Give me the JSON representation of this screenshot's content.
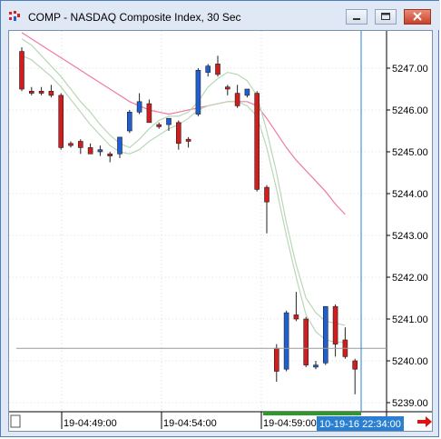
{
  "window": {
    "title": "COMP - NASDAQ Composite Index, 30 Sec",
    "minimize_icon": "minimize-icon",
    "maximize_icon": "maximize-icon",
    "close_icon": "close-icon"
  },
  "chart_data": {
    "type": "candlestick",
    "y_ticks": [
      "5247.00",
      "5246.00",
      "5245.00",
      "5244.00",
      "5243.00",
      "5242.00",
      "5241.00",
      "5240.00",
      "5239.00"
    ],
    "x_ticks": [
      "19-04:49:00",
      "19-04:54:00",
      "19-04:59:00"
    ],
    "crosshair_time_label": "10-19-16 22:34:00",
    "colors": {
      "up": "#1f5fd1",
      "down": "#d11d1d",
      "ma_fast": "#b9d7b6",
      "ma_slow": "#f07aa0",
      "cursor": "#2a7fd0",
      "price_line": "#9a9a9a"
    },
    "candles": [
      {
        "o": 5247.4,
        "h": 5247.5,
        "l": 5246.45,
        "c": 5246.5
      },
      {
        "o": 5246.45,
        "h": 5246.55,
        "l": 5246.35,
        "c": 5246.4
      },
      {
        "o": 5246.45,
        "h": 5246.55,
        "l": 5246.35,
        "c": 5246.4
      },
      {
        "o": 5246.45,
        "h": 5246.6,
        "l": 5246.3,
        "c": 5246.35
      },
      {
        "o": 5246.35,
        "h": 5246.4,
        "l": 5245.05,
        "c": 5245.1
      },
      {
        "o": 5245.2,
        "h": 5245.25,
        "l": 5245.1,
        "c": 5245.15
      },
      {
        "o": 5245.25,
        "h": 5245.3,
        "l": 5244.95,
        "c": 5245.1
      },
      {
        "o": 5245.1,
        "h": 5245.2,
        "l": 5244.95,
        "c": 5244.95
      },
      {
        "o": 5245.0,
        "h": 5245.15,
        "l": 5244.9,
        "c": 5245.05
      },
      {
        "o": 5244.95,
        "h": 5245.0,
        "l": 5244.75,
        "c": 5244.9
      },
      {
        "o": 5244.95,
        "h": 5245.35,
        "l": 5244.85,
        "c": 5245.35
      },
      {
        "o": 5245.5,
        "h": 5246.0,
        "l": 5245.45,
        "c": 5245.95
      },
      {
        "o": 5245.95,
        "h": 5246.4,
        "l": 5245.9,
        "c": 5246.2
      },
      {
        "o": 5246.15,
        "h": 5246.25,
        "l": 5245.7,
        "c": 5245.7
      },
      {
        "o": 5245.65,
        "h": 5245.7,
        "l": 5245.55,
        "c": 5245.6
      },
      {
        "o": 5245.65,
        "h": 5245.8,
        "l": 5245.5,
        "c": 5245.8
      },
      {
        "o": 5245.7,
        "h": 5245.75,
        "l": 5245.05,
        "c": 5245.2
      },
      {
        "o": 5245.3,
        "h": 5245.35,
        "l": 5245.1,
        "c": 5245.25
      },
      {
        "o": 5245.9,
        "h": 5247.0,
        "l": 5245.85,
        "c": 5246.95
      },
      {
        "o": 5246.9,
        "h": 5247.1,
        "l": 5246.8,
        "c": 5247.05
      },
      {
        "o": 5247.1,
        "h": 5247.3,
        "l": 5246.8,
        "c": 5246.85
      },
      {
        "o": 5246.55,
        "h": 5246.6,
        "l": 5246.35,
        "c": 5246.5
      },
      {
        "o": 5246.4,
        "h": 5246.6,
        "l": 5246.05,
        "c": 5246.1
      },
      {
        "o": 5246.35,
        "h": 5246.5,
        "l": 5246.3,
        "c": 5246.5
      },
      {
        "o": 5246.4,
        "h": 5246.45,
        "l": 5244.05,
        "c": 5244.1
      },
      {
        "o": 5244.15,
        "h": 5244.2,
        "l": 5243.05,
        "c": 5243.8
      },
      {
        "o": 5240.3,
        "h": 5240.4,
        "l": 5239.5,
        "c": 5239.75
      },
      {
        "o": 5239.8,
        "h": 5241.2,
        "l": 5239.75,
        "c": 5241.15
      },
      {
        "o": 5241.1,
        "h": 5241.65,
        "l": 5240.95,
        "c": 5241.0
      },
      {
        "o": 5241.0,
        "h": 5241.05,
        "l": 5239.85,
        "c": 5239.9
      },
      {
        "o": 5239.85,
        "h": 5240.0,
        "l": 5239.8,
        "c": 5239.9
      },
      {
        "o": 5239.95,
        "h": 5241.3,
        "l": 5239.9,
        "c": 5241.3
      },
      {
        "o": 5241.3,
        "h": 5241.35,
        "l": 5240.1,
        "c": 5240.4
      },
      {
        "o": 5240.5,
        "h": 5240.8,
        "l": 5240.05,
        "c": 5240.1
      },
      {
        "o": 5240.0,
        "h": 5240.05,
        "l": 5239.2,
        "c": 5239.8
      }
    ],
    "ma_fast": [
      5247.7,
      5247.55,
      5247.3,
      5247.05,
      5246.8,
      5246.5,
      5246.2,
      5245.95,
      5245.65,
      5245.4,
      5245.2,
      5245.1,
      5245.3,
      5245.55,
      5245.75,
      5245.85,
      5245.85,
      5245.95,
      5246.2,
      5246.55,
      5246.75,
      5246.9,
      5246.85,
      5246.7,
      5246.35,
      5245.5,
      5244.5,
      5243.3,
      5242.3,
      5241.5,
      5241.15,
      5240.95,
      5240.9,
      5240.85
    ],
    "ma_fast2": [
      5247.3,
      5247.2,
      5247.0,
      5246.8,
      5246.55,
      5246.25,
      5245.95,
      5245.65,
      5245.4,
      5245.15,
      5245.0,
      5244.95,
      5245.05,
      5245.25,
      5245.4,
      5245.55,
      5245.65,
      5245.8,
      5246.0,
      5246.1,
      5246.15,
      5246.2,
      5246.2,
      5246.1,
      5245.85,
      5245.1,
      5244.1,
      5243.0,
      5242.0,
      5241.1,
      5240.7,
      5240.5,
      5240.45,
      5240.45
    ],
    "ma_slow": [
      5247.85,
      5247.7,
      5247.55,
      5247.4,
      5247.25,
      5247.1,
      5246.95,
      5246.8,
      5246.65,
      5246.5,
      5246.35,
      5246.2,
      5246.1,
      5246.0,
      5245.95,
      5245.9,
      5245.95,
      5246.0,
      5246.05,
      5246.1,
      5246.15,
      5246.2,
      5246.2,
      5246.2,
      5246.1,
      5245.8,
      5245.45,
      5245.1,
      5244.8,
      5244.55,
      5244.3,
      5244.05,
      5243.75,
      5243.5
    ],
    "price_line": 5240.3
  }
}
